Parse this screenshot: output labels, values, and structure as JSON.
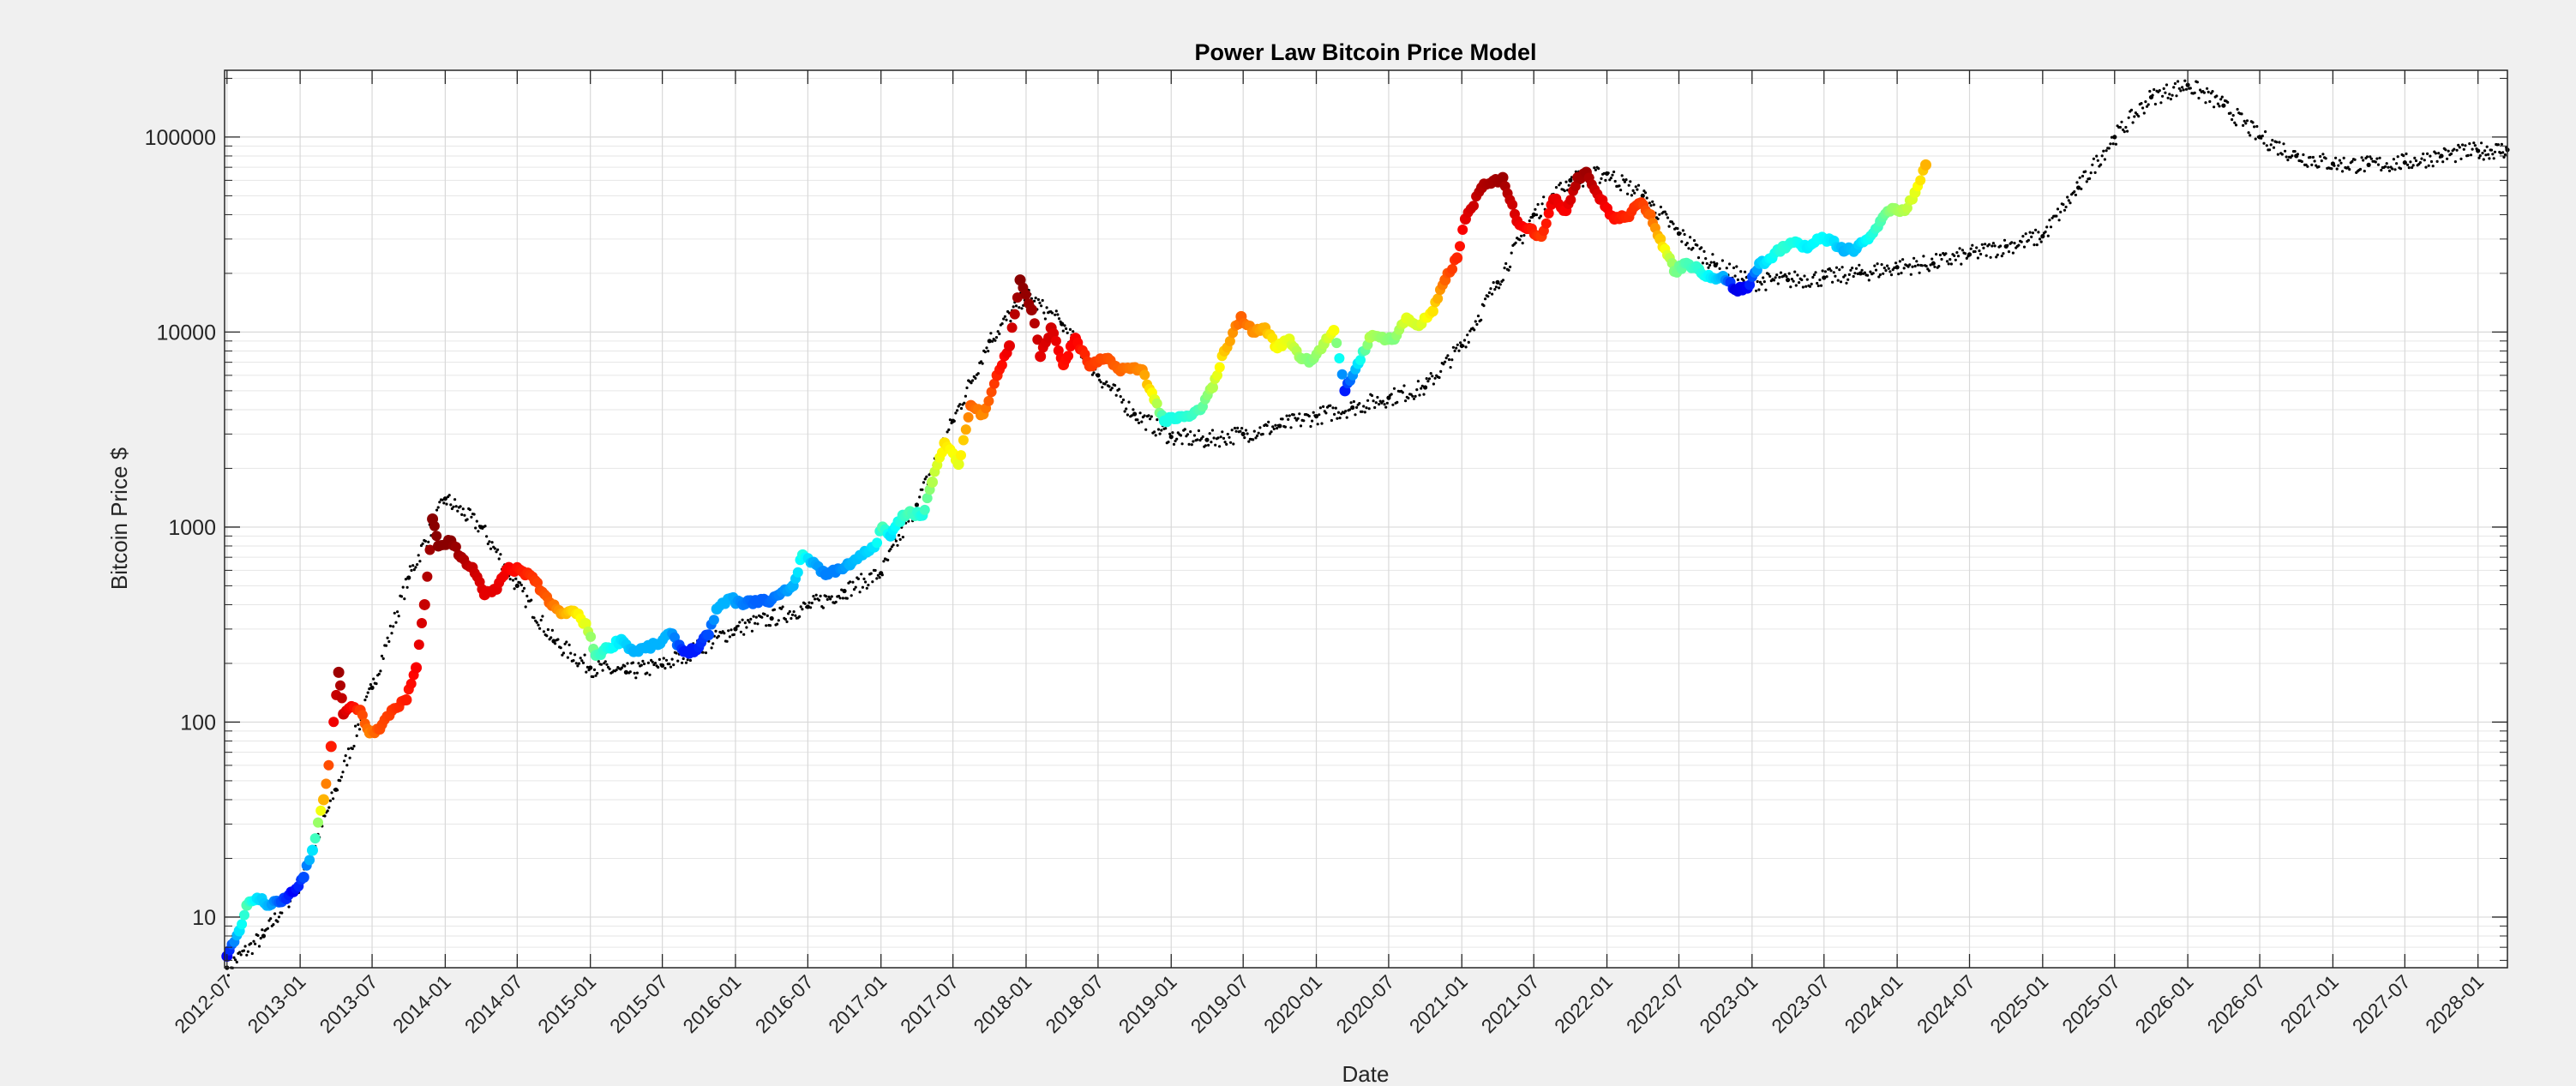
{
  "chart_data": {
    "type": "scatter",
    "title": "Power Law Bitcoin Price Model",
    "xlabel": "Date",
    "ylabel": "Bitcoin Price $",
    "y_scale": "log",
    "ylim": [
      5.5,
      220000
    ],
    "xlim": [
      "2012-06-25",
      "2028-03-15"
    ],
    "grid": true,
    "minor_grid": true,
    "x_tick_labels": [
      "2012-07",
      "2013-01",
      "2013-07",
      "2014-01",
      "2014-07",
      "2015-01",
      "2015-07",
      "2016-01",
      "2016-07",
      "2017-01",
      "2017-07",
      "2018-01",
      "2018-07",
      "2019-01",
      "2019-07",
      "2020-01",
      "2020-07",
      "2021-01",
      "2021-07",
      "2022-01",
      "2022-07",
      "2023-01",
      "2023-07",
      "2024-01",
      "2024-07",
      "2025-01",
      "2025-07",
      "2026-01",
      "2026-07",
      "2027-01",
      "2027-07",
      "2028-01"
    ],
    "y_tick_labels": [
      {
        "value": 10,
        "label": "10"
      },
      {
        "value": 100,
        "label": "100"
      },
      {
        "value": 1000,
        "label": "1000"
      },
      {
        "value": 10000,
        "label": "10000"
      },
      {
        "value": 100000,
        "label": "100000"
      }
    ],
    "colormap": "jet",
    "series": [
      {
        "marker": "filled circles colored by jet colormap",
        "points": [
          [
            "2012-07-01",
            6.3,
            0.12
          ],
          [
            "2012-08-01",
            8.5,
            0.35
          ],
          [
            "2012-08-20",
            11.5,
            0.45
          ],
          [
            "2012-09-15",
            12.5,
            0.35
          ],
          [
            "2012-10-15",
            11.5,
            0.3
          ],
          [
            "2012-11-15",
            12.0,
            0.2
          ],
          [
            "2012-12-15",
            13.5,
            0.12
          ],
          [
            "2013-01-10",
            16,
            0.2
          ],
          [
            "2013-02-01",
            22,
            0.35
          ],
          [
            "2013-03-01",
            40,
            0.7
          ],
          [
            "2013-03-20",
            75,
            0.85
          ],
          [
            "2013-04-08",
            180,
            0.97
          ],
          [
            "2013-04-20",
            110,
            0.92
          ],
          [
            "2013-05-10",
            120,
            0.88
          ],
          [
            "2013-06-01",
            115,
            0.82
          ],
          [
            "2013-06-25",
            88,
            0.75
          ],
          [
            "2013-07-20",
            92,
            0.8
          ],
          [
            "2013-08-20",
            115,
            0.82
          ],
          [
            "2013-09-25",
            130,
            0.85
          ],
          [
            "2013-10-20",
            190,
            0.88
          ],
          [
            "2013-11-10",
            400,
            0.93
          ],
          [
            "2013-11-30",
            1100,
            0.99
          ],
          [
            "2013-12-15",
            800,
            0.99
          ],
          [
            "2014-01-15",
            850,
            0.99
          ],
          [
            "2014-02-10",
            700,
            0.96
          ],
          [
            "2014-03-10",
            620,
            0.93
          ],
          [
            "2014-04-10",
            450,
            0.9
          ],
          [
            "2014-05-10",
            480,
            0.9
          ],
          [
            "2014-06-10",
            620,
            0.88
          ],
          [
            "2014-07-15",
            590,
            0.85
          ],
          [
            "2014-08-15",
            530,
            0.82
          ],
          [
            "2014-09-20",
            410,
            0.78
          ],
          [
            "2014-10-20",
            360,
            0.72
          ],
          [
            "2014-11-20",
            370,
            0.66
          ],
          [
            "2014-12-20",
            320,
            0.6
          ],
          [
            "2015-01-15",
            220,
            0.45
          ],
          [
            "2015-02-15",
            240,
            0.4
          ],
          [
            "2015-03-20",
            265,
            0.35
          ],
          [
            "2015-04-20",
            230,
            0.3
          ],
          [
            "2015-05-20",
            240,
            0.3
          ],
          [
            "2015-06-20",
            250,
            0.3
          ],
          [
            "2015-07-20",
            285,
            0.3
          ],
          [
            "2015-08-25",
            230,
            0.15
          ],
          [
            "2015-09-25",
            235,
            0.15
          ],
          [
            "2015-10-25",
            280,
            0.2
          ],
          [
            "2015-11-15",
            380,
            0.3
          ],
          [
            "2015-12-20",
            430,
            0.3
          ],
          [
            "2016-01-20",
            400,
            0.25
          ],
          [
            "2016-02-20",
            420,
            0.22
          ],
          [
            "2016-03-20",
            415,
            0.22
          ],
          [
            "2016-04-20",
            450,
            0.25
          ],
          [
            "2016-05-25",
            500,
            0.3
          ],
          [
            "2016-06-18",
            720,
            0.4
          ],
          [
            "2016-07-15",
            660,
            0.3
          ],
          [
            "2016-08-15",
            570,
            0.25
          ],
          [
            "2016-09-15",
            610,
            0.25
          ],
          [
            "2016-10-15",
            640,
            0.3
          ],
          [
            "2016-11-15",
            720,
            0.32
          ],
          [
            "2016-12-15",
            790,
            0.35
          ],
          [
            "2017-01-05",
            1000,
            0.45
          ],
          [
            "2017-01-25",
            900,
            0.35
          ],
          [
            "2017-02-25",
            1150,
            0.42
          ],
          [
            "2017-03-15",
            1200,
            0.45
          ],
          [
            "2017-04-15",
            1150,
            0.4
          ],
          [
            "2017-05-10",
            1700,
            0.55
          ],
          [
            "2017-06-10",
            2700,
            0.65
          ],
          [
            "2017-07-15",
            2100,
            0.6
          ],
          [
            "2017-08-15",
            4200,
            0.78
          ],
          [
            "2017-09-15",
            3800,
            0.74
          ],
          [
            "2017-10-20",
            6000,
            0.84
          ],
          [
            "2017-11-20",
            8500,
            0.9
          ],
          [
            "2017-12-17",
            18500,
            0.99
          ],
          [
            "2018-01-15",
            13000,
            0.97
          ],
          [
            "2018-02-06",
            7500,
            0.9
          ],
          [
            "2018-03-05",
            10500,
            0.92
          ],
          [
            "2018-04-05",
            6800,
            0.86
          ],
          [
            "2018-05-05",
            9300,
            0.88
          ],
          [
            "2018-06-10",
            6700,
            0.82
          ],
          [
            "2018-07-20",
            7300,
            0.8
          ],
          [
            "2018-08-20",
            6500,
            0.78
          ],
          [
            "2018-09-20",
            6500,
            0.76
          ],
          [
            "2018-10-20",
            6400,
            0.74
          ],
          [
            "2018-11-20",
            4500,
            0.6
          ],
          [
            "2018-12-15",
            3500,
            0.4
          ],
          [
            "2019-01-15",
            3600,
            0.4
          ],
          [
            "2019-02-15",
            3700,
            0.42
          ],
          [
            "2019-03-15",
            4000,
            0.45
          ],
          [
            "2019-04-15",
            5200,
            0.55
          ],
          [
            "2019-05-15",
            8000,
            0.68
          ],
          [
            "2019-06-26",
            12000,
            0.78
          ],
          [
            "2019-07-25",
            10000,
            0.74
          ],
          [
            "2019-08-25",
            10500,
            0.7
          ],
          [
            "2019-09-25",
            8300,
            0.62
          ],
          [
            "2019-10-25",
            9200,
            0.6
          ],
          [
            "2019-11-25",
            7300,
            0.52
          ],
          [
            "2019-12-20",
            7200,
            0.5
          ],
          [
            "2020-01-20",
            8700,
            0.55
          ],
          [
            "2020-02-14",
            10200,
            0.62
          ],
          [
            "2020-03-13",
            5000,
            0.15
          ],
          [
            "2020-04-15",
            6900,
            0.35
          ],
          [
            "2020-05-15",
            9400,
            0.55
          ],
          [
            "2020-06-15",
            9400,
            0.52
          ],
          [
            "2020-07-15",
            9200,
            0.5
          ],
          [
            "2020-08-15",
            11800,
            0.6
          ],
          [
            "2020-09-15",
            10800,
            0.58
          ],
          [
            "2020-10-20",
            12800,
            0.65
          ],
          [
            "2020-11-20",
            18500,
            0.78
          ],
          [
            "2020-12-20",
            24000,
            0.84
          ],
          [
            "2021-01-10",
            38000,
            0.9
          ],
          [
            "2021-02-20",
            55000,
            0.95
          ],
          [
            "2021-03-15",
            58000,
            0.96
          ],
          [
            "2021-04-14",
            62000,
            0.97
          ],
          [
            "2021-05-20",
            37000,
            0.9
          ],
          [
            "2021-06-20",
            34000,
            0.86
          ],
          [
            "2021-07-20",
            31000,
            0.82
          ],
          [
            "2021-08-20",
            48000,
            0.9
          ],
          [
            "2021-09-20",
            42000,
            0.88
          ],
          [
            "2021-10-20",
            62000,
            0.96
          ],
          [
            "2021-11-10",
            66000,
            0.97
          ],
          [
            "2021-12-15",
            48000,
            0.9
          ],
          [
            "2022-01-20",
            38000,
            0.86
          ],
          [
            "2022-02-20",
            39000,
            0.84
          ],
          [
            "2022-03-28",
            46000,
            0.82
          ],
          [
            "2022-04-20",
            40000,
            0.78
          ],
          [
            "2022-05-15",
            30000,
            0.68
          ],
          [
            "2022-06-20",
            20500,
            0.5
          ],
          [
            "2022-07-20",
            22500,
            0.45
          ],
          [
            "2022-08-20",
            21000,
            0.42
          ],
          [
            "2022-09-20",
            19000,
            0.36
          ],
          [
            "2022-10-20",
            19300,
            0.3
          ],
          [
            "2022-11-20",
            16500,
            0.1
          ],
          [
            "2022-12-20",
            16800,
            0.12
          ],
          [
            "2023-01-20",
            22500,
            0.32
          ],
          [
            "2023-02-20",
            24000,
            0.38
          ],
          [
            "2023-03-20",
            27500,
            0.42
          ],
          [
            "2023-04-20",
            29000,
            0.4
          ],
          [
            "2023-05-20",
            27000,
            0.36
          ],
          [
            "2023-06-20",
            30000,
            0.38
          ],
          [
            "2023-07-20",
            29500,
            0.36
          ],
          [
            "2023-08-20",
            26000,
            0.3
          ],
          [
            "2023-09-20",
            26800,
            0.32
          ],
          [
            "2023-10-20",
            30000,
            0.38
          ],
          [
            "2023-11-20",
            37000,
            0.45
          ],
          [
            "2023-12-20",
            43000,
            0.52
          ],
          [
            "2024-01-20",
            42000,
            0.55
          ],
          [
            "2024-02-15",
            52000,
            0.6
          ],
          [
            "2024-03-13",
            72000,
            0.7
          ]
        ]
      },
      {
        "marker": "small black dots (model)",
        "points": [
          [
            "2012-07-01",
            5.5
          ],
          [
            "2012-10-01",
            8.0
          ],
          [
            "2013-01-01",
            15
          ],
          [
            "2013-04-01",
            45
          ],
          [
            "2013-07-01",
            150
          ],
          [
            "2013-10-01",
            550
          ],
          [
            "2014-01-01",
            1400
          ],
          [
            "2014-04-01",
            1000
          ],
          [
            "2014-07-01",
            500
          ],
          [
            "2014-10-01",
            260
          ],
          [
            "2015-01-01",
            190
          ],
          [
            "2015-04-01",
            180
          ],
          [
            "2015-07-01",
            195
          ],
          [
            "2015-10-01",
            240
          ],
          [
            "2016-01-01",
            300
          ],
          [
            "2016-04-01",
            340
          ],
          [
            "2016-07-01",
            390
          ],
          [
            "2016-10-01",
            470
          ],
          [
            "2017-01-01",
            580
          ],
          [
            "2017-04-01",
            1300
          ],
          [
            "2017-07-01",
            3500
          ],
          [
            "2017-10-01",
            9000
          ],
          [
            "2018-01-01",
            15500
          ],
          [
            "2018-04-01",
            11000
          ],
          [
            "2018-07-01",
            6000
          ],
          [
            "2018-10-01",
            3800
          ],
          [
            "2019-01-01",
            2900
          ],
          [
            "2019-04-01",
            2800
          ],
          [
            "2019-07-01",
            3000
          ],
          [
            "2019-10-01",
            3300
          ],
          [
            "2020-01-01",
            3700
          ],
          [
            "2020-04-01",
            4100
          ],
          [
            "2020-07-01",
            4600
          ],
          [
            "2020-10-01",
            5200
          ],
          [
            "2021-01-01",
            8500
          ],
          [
            "2021-04-01",
            18000
          ],
          [
            "2021-07-01",
            40000
          ],
          [
            "2021-10-01",
            60000
          ],
          [
            "2022-01-01",
            65000
          ],
          [
            "2022-04-01",
            50000
          ],
          [
            "2022-07-01",
            32000
          ],
          [
            "2022-10-01",
            22000
          ],
          [
            "2023-01-01",
            18000
          ],
          [
            "2023-04-01",
            18500
          ],
          [
            "2023-07-01",
            19000
          ],
          [
            "2023-10-01",
            20000
          ],
          [
            "2024-01-01",
            21500
          ],
          [
            "2024-04-01",
            22500
          ],
          [
            "2024-07-01",
            25000
          ],
          [
            "2024-10-01",
            27500
          ],
          [
            "2025-01-01",
            31000
          ],
          [
            "2025-04-01",
            55000
          ],
          [
            "2025-07-01",
            100000
          ],
          [
            "2025-10-01",
            160000
          ],
          [
            "2026-01-01",
            185000
          ],
          [
            "2026-04-01",
            145000
          ],
          [
            "2026-07-01",
            100000
          ],
          [
            "2026-10-01",
            80000
          ],
          [
            "2027-01-01",
            73000
          ],
          [
            "2027-04-01",
            72000
          ],
          [
            "2027-07-01",
            74000
          ],
          [
            "2027-10-01",
            80000
          ],
          [
            "2028-01-01",
            85000
          ],
          [
            "2028-03-15",
            86000
          ]
        ]
      }
    ]
  }
}
